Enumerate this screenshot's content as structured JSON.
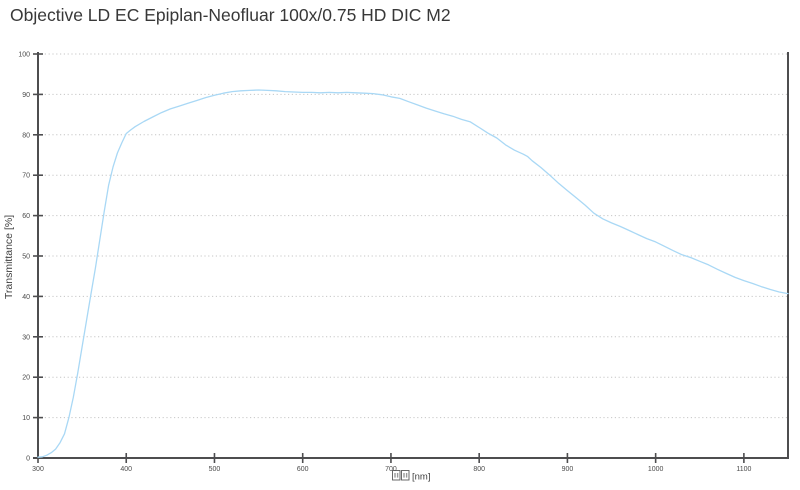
{
  "title": "Objective LD EC Epiplan-Neofluar 100x/0.75 HD DIC M2",
  "colors": {
    "curve": "#a9d8f5",
    "axis": "#4d4d4f",
    "grid": "#c6c6c6",
    "tick_text": "#4a4a4a",
    "title_text": "#383838"
  },
  "chart_data": {
    "type": "line",
    "title": "Objective LD EC Epiplan-Neofluar 100x/0.75 HD DIC M2",
    "ylabel": "Transmittance [%]",
    "xlabel_unit": "[nm]",
    "xlabel_missing_glyph_boxes": 2,
    "xlim": [
      300,
      1150
    ],
    "ylim": [
      0,
      100
    ],
    "x_ticks": [
      300,
      400,
      500,
      600,
      700,
      800,
      900,
      1000,
      1100
    ],
    "y_ticks": [
      0,
      10,
      20,
      30,
      40,
      50,
      60,
      70,
      80,
      90,
      100
    ],
    "grid": "horizontal-dotted",
    "legend": "none",
    "series": [
      {
        "name": "transmittance",
        "color": "#a9d8f5",
        "points": [
          [
            300,
            0.2
          ],
          [
            305,
            0.3
          ],
          [
            310,
            0.7
          ],
          [
            315,
            1.3
          ],
          [
            320,
            2.2
          ],
          [
            325,
            3.8
          ],
          [
            330,
            6.0
          ],
          [
            335,
            10.0
          ],
          [
            340,
            15.0
          ],
          [
            345,
            21.0
          ],
          [
            350,
            27.5
          ],
          [
            355,
            34.0
          ],
          [
            360,
            40.5
          ],
          [
            365,
            47.0
          ],
          [
            370,
            54.0
          ],
          [
            375,
            61.0
          ],
          [
            380,
            67.5
          ],
          [
            385,
            72.0
          ],
          [
            390,
            75.5
          ],
          [
            395,
            78.0
          ],
          [
            400,
            80.3
          ],
          [
            405,
            81.2
          ],
          [
            410,
            82.0
          ],
          [
            420,
            83.3
          ],
          [
            430,
            84.4
          ],
          [
            440,
            85.5
          ],
          [
            450,
            86.4
          ],
          [
            460,
            87.1
          ],
          [
            470,
            87.8
          ],
          [
            480,
            88.5
          ],
          [
            490,
            89.2
          ],
          [
            500,
            89.8
          ],
          [
            510,
            90.3
          ],
          [
            520,
            90.7
          ],
          [
            530,
            90.9
          ],
          [
            540,
            91.0
          ],
          [
            550,
            91.1
          ],
          [
            560,
            91.0
          ],
          [
            570,
            90.9
          ],
          [
            580,
            90.7
          ],
          [
            590,
            90.6
          ],
          [
            600,
            90.5
          ],
          [
            610,
            90.5
          ],
          [
            620,
            90.4
          ],
          [
            630,
            90.5
          ],
          [
            640,
            90.4
          ],
          [
            650,
            90.5
          ],
          [
            660,
            90.4
          ],
          [
            670,
            90.3
          ],
          [
            680,
            90.2
          ],
          [
            690,
            89.9
          ],
          [
            700,
            89.4
          ],
          [
            710,
            89.0
          ],
          [
            720,
            88.2
          ],
          [
            730,
            87.4
          ],
          [
            740,
            86.6
          ],
          [
            750,
            85.9
          ],
          [
            760,
            85.2
          ],
          [
            770,
            84.6
          ],
          [
            780,
            83.8
          ],
          [
            790,
            83.2
          ],
          [
            800,
            81.8
          ],
          [
            810,
            80.4
          ],
          [
            820,
            79.2
          ],
          [
            830,
            77.5
          ],
          [
            840,
            76.2
          ],
          [
            850,
            75.2
          ],
          [
            855,
            74.6
          ],
          [
            860,
            73.6
          ],
          [
            870,
            71.9
          ],
          [
            880,
            70.0
          ],
          [
            890,
            68.0
          ],
          [
            900,
            66.2
          ],
          [
            910,
            64.4
          ],
          [
            920,
            62.6
          ],
          [
            930,
            60.6
          ],
          [
            940,
            59.2
          ],
          [
            950,
            58.2
          ],
          [
            960,
            57.3
          ],
          [
            970,
            56.3
          ],
          [
            980,
            55.3
          ],
          [
            990,
            54.3
          ],
          [
            1000,
            53.5
          ],
          [
            1010,
            52.4
          ],
          [
            1020,
            51.3
          ],
          [
            1030,
            50.3
          ],
          [
            1040,
            49.6
          ],
          [
            1050,
            48.7
          ],
          [
            1060,
            47.8
          ],
          [
            1070,
            46.7
          ],
          [
            1080,
            45.7
          ],
          [
            1090,
            44.7
          ],
          [
            1100,
            43.9
          ],
          [
            1110,
            43.2
          ],
          [
            1120,
            42.4
          ],
          [
            1130,
            41.7
          ],
          [
            1140,
            41.1
          ],
          [
            1150,
            40.7
          ]
        ]
      }
    ]
  }
}
